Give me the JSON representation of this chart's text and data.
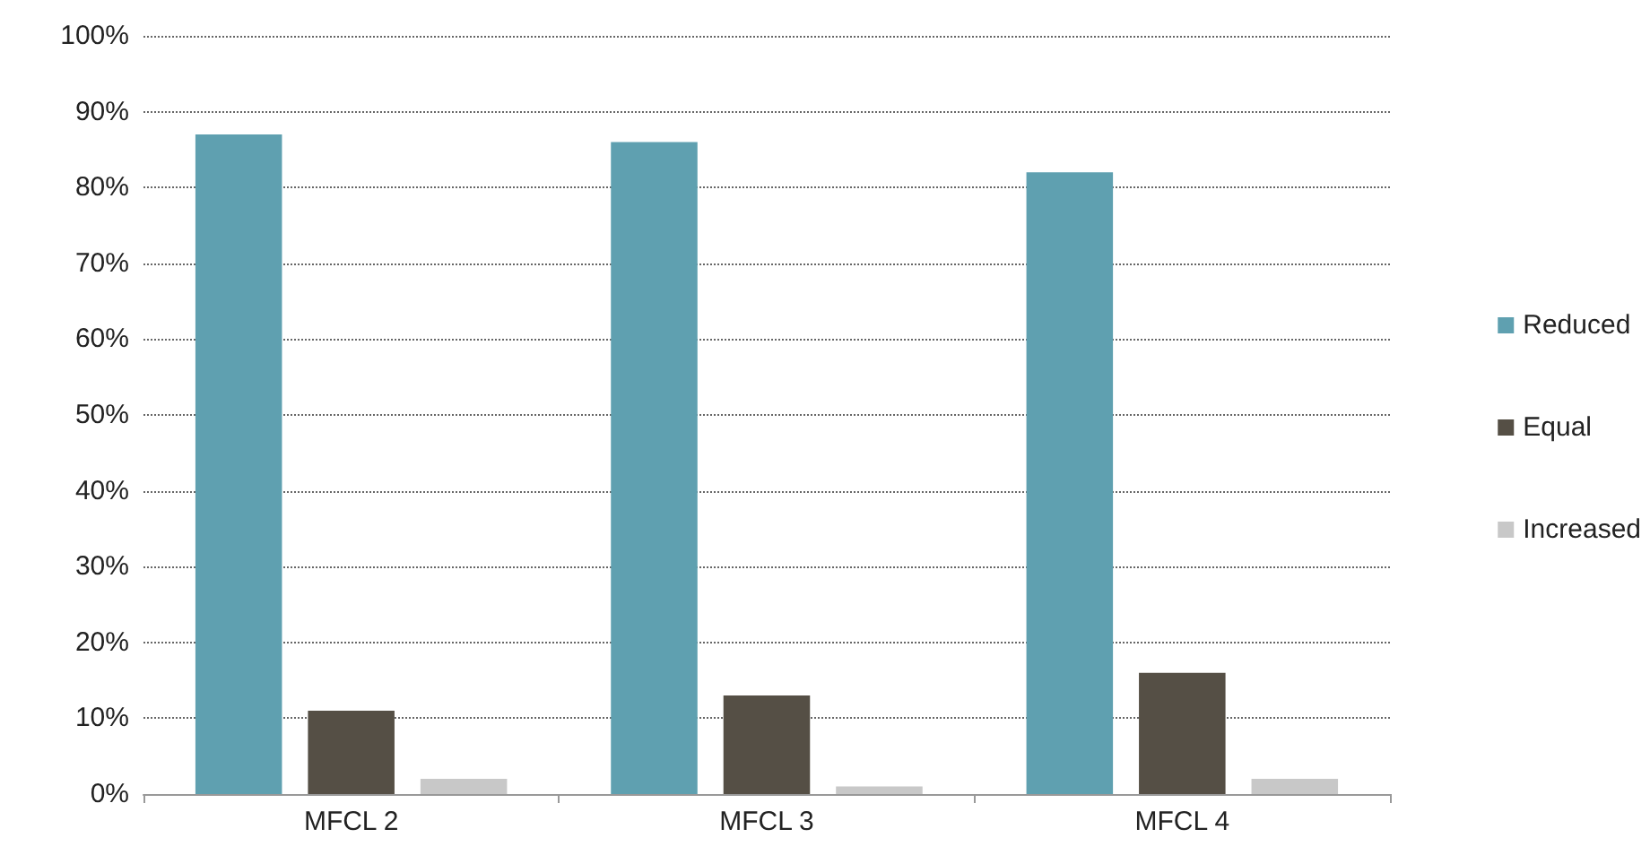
{
  "chart_data": {
    "type": "bar",
    "categories": [
      "MFCL 2",
      "MFCL 3",
      "MFCL 4"
    ],
    "series": [
      {
        "name": "Reduced",
        "color": "#5fa0b0",
        "values": [
          87,
          86,
          82
        ]
      },
      {
        "name": "Equal",
        "color": "#554f45",
        "values": [
          11,
          13,
          16
        ]
      },
      {
        "name": "Increased",
        "color": "#c8c8c8",
        "values": [
          2,
          1,
          2
        ]
      }
    ],
    "ylim": [
      0,
      100
    ],
    "yticks": [
      {
        "value": 0,
        "label": "0%"
      },
      {
        "value": 10,
        "label": "10%"
      },
      {
        "value": 20,
        "label": "20%"
      },
      {
        "value": 30,
        "label": "30%"
      },
      {
        "value": 40,
        "label": "40%"
      },
      {
        "value": 50,
        "label": "50%"
      },
      {
        "value": 60,
        "label": "60%"
      },
      {
        "value": 70,
        "label": "70%"
      },
      {
        "value": 80,
        "label": "80%"
      },
      {
        "value": 90,
        "label": "90%"
      },
      {
        "value": 100,
        "label": "100%"
      }
    ],
    "grid": "y",
    "legend": "right"
  }
}
